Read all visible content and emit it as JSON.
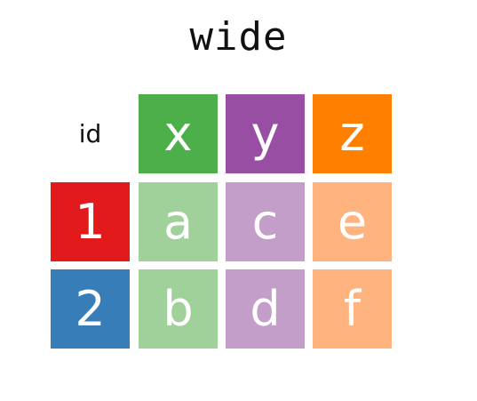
{
  "title": "wide",
  "colors": {
    "id1": "#e31a1c",
    "id2": "#377eb8",
    "x_header": "#4daf4a",
    "y_header": "#984ea3",
    "z_header": "#ff7f00",
    "x_value": "#a1d19a",
    "y_value": "#c29ec8",
    "z_value": "#ffb47f"
  },
  "table": {
    "header": {
      "id": "id",
      "x": "x",
      "y": "y",
      "z": "z"
    },
    "rows": [
      {
        "id": "1",
        "x": "a",
        "y": "c",
        "z": "e"
      },
      {
        "id": "2",
        "x": "b",
        "y": "d",
        "z": "f"
      }
    ]
  }
}
